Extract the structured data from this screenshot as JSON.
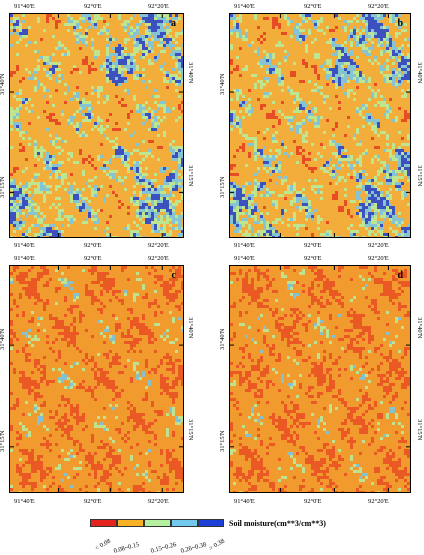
{
  "panels": [
    {
      "letter": "a",
      "variant": "wet"
    },
    {
      "letter": "b",
      "variant": "wet"
    },
    {
      "letter": "c",
      "variant": "dry"
    },
    {
      "letter": "d",
      "variant": "dry"
    }
  ],
  "lon_labels": [
    "91°40'E",
    "92°0'E",
    "92°20'E"
  ],
  "lat_labels": [
    "31°40'N",
    "31°15'N"
  ],
  "legend": {
    "title": "Soil moisture(cm**3/cm**3)",
    "classes": [
      {
        "label": "< 0.08",
        "color": "#e3241c"
      },
      {
        "label": "0.08~0.15",
        "color": "#f6b124"
      },
      {
        "label": "0.15~0.26",
        "color": "#b5efa0"
      },
      {
        "label": "0.26~0.38",
        "color": "#72c8ed"
      },
      {
        "label": "> 0.38",
        "color": "#1c3fd6"
      }
    ]
  }
}
